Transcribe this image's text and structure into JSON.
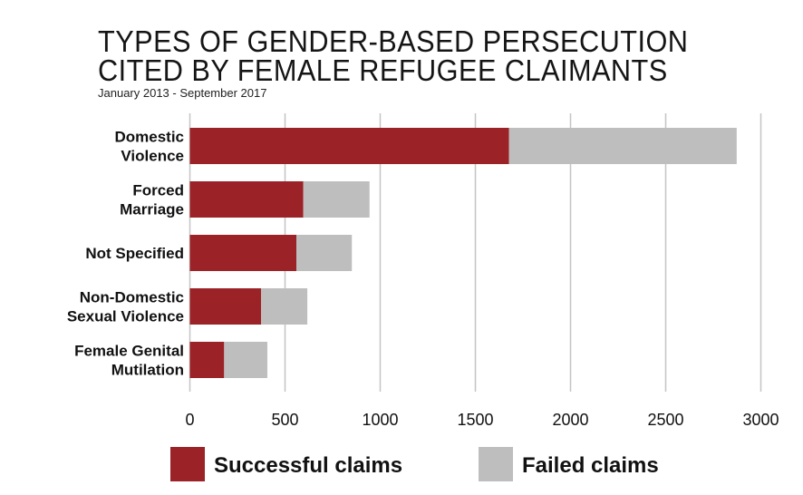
{
  "chart_data": {
    "type": "bar",
    "orientation": "horizontal",
    "stacked": true,
    "title": "TYPES OF GENDER-BASED PERSECUTION CITED BY FEMALE REFUGEE CLAIMANTS",
    "title_lines": [
      "TYPES OF GENDER-BASED PERSECUTION",
      "CITED BY FEMALE REFUGEE CLAIMANTS"
    ],
    "subtitle": "January 2013 - September 2017",
    "categories": [
      [
        "Domestic",
        "Violence"
      ],
      [
        "Forced",
        "Marriage"
      ],
      [
        "Not Specified"
      ],
      [
        "Non-Domestic",
        "Sexual Violence"
      ],
      [
        "Female Genital",
        "Mutilation"
      ]
    ],
    "series": [
      {
        "name": "Successful claims",
        "color": "#9b2226",
        "values": [
          1677,
          596,
          560,
          374,
          180
        ]
      },
      {
        "name": "Failed claims",
        "color": "#bebebe",
        "values": [
          1196,
          348,
          291,
          243,
          227
        ]
      }
    ],
    "xlim": [
      0,
      3000
    ],
    "xticks": [
      "0",
      "500",
      "1000",
      "1500",
      "2000",
      "2500",
      "3000"
    ],
    "grid": true,
    "legend_position": "bottom"
  }
}
